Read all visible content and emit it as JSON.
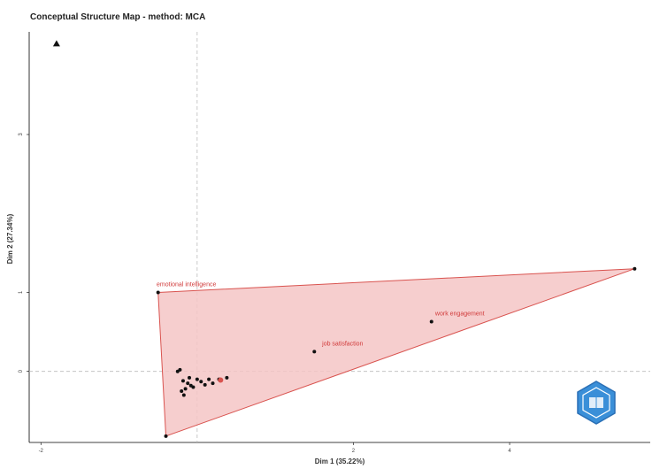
{
  "chart_data": {
    "type": "scatter",
    "title": "Conceptual Structure Map - method: MCA",
    "xlabel": "Dim 1 (35.22%)",
    "ylabel": "Dim 2 (27.34%)",
    "xlim": [
      -2.15,
      5.8
    ],
    "ylim": [
      -0.9,
      4.3
    ],
    "x_ticks": [
      {
        "value": -2,
        "label": "-2"
      },
      {
        "value": 2,
        "label": "2"
      },
      {
        "value": 4,
        "label": "4"
      }
    ],
    "y_ticks": [
      {
        "value": 0,
        "label": "0"
      },
      {
        "value": 1,
        "label": "1"
      },
      {
        "value": 3,
        "label": "3"
      }
    ],
    "grid": false,
    "reference_lines": {
      "x": 0,
      "y": 0
    },
    "cluster": {
      "fill": "#f5c6c6",
      "stroke": "#d9534f",
      "hull": [
        [
          -0.5,
          1.0
        ],
        [
          5.6,
          1.3
        ],
        [
          -0.4,
          -0.82
        ]
      ]
    },
    "labeled_points": [
      {
        "label": "emotional intelligence",
        "x": -0.5,
        "y": 1.0
      },
      {
        "label": "job satisfaction",
        "x": 1.5,
        "y": 0.25
      },
      {
        "label": "work engagement",
        "x": 3.0,
        "y": 0.63
      }
    ],
    "points": [
      {
        "x": 5.6,
        "y": 1.3
      },
      {
        "x": -0.4,
        "y": -0.82
      },
      {
        "x": -0.22,
        "y": 0.02
      },
      {
        "x": -0.25,
        "y": 0.0
      },
      {
        "x": -0.18,
        "y": -0.12
      },
      {
        "x": -0.12,
        "y": -0.15
      },
      {
        "x": -0.08,
        "y": -0.18
      },
      {
        "x": -0.15,
        "y": -0.22
      },
      {
        "x": -0.2,
        "y": -0.25
      },
      {
        "x": -0.05,
        "y": -0.2
      },
      {
        "x": 0.0,
        "y": -0.1
      },
      {
        "x": 0.05,
        "y": -0.13
      },
      {
        "x": 0.1,
        "y": -0.17
      },
      {
        "x": 0.15,
        "y": -0.1
      },
      {
        "x": -0.1,
        "y": -0.08
      },
      {
        "x": 0.2,
        "y": -0.15
      },
      {
        "x": -0.17,
        "y": -0.3
      },
      {
        "x": 0.28,
        "y": -0.1
      },
      {
        "x": 0.38,
        "y": -0.08
      }
    ],
    "centroid": {
      "x": 0.3,
      "y": -0.11,
      "color": "#d9534f"
    },
    "outlier": {
      "x": -1.8,
      "y": 4.15,
      "marker": "triangle"
    },
    "colors": {
      "points": "#111111",
      "labels": "#d03a3a",
      "reference": "#bbbbbb"
    }
  },
  "logo": {
    "name": "bibliometrix-hexagon-logo",
    "color": "#3a8fd8"
  }
}
